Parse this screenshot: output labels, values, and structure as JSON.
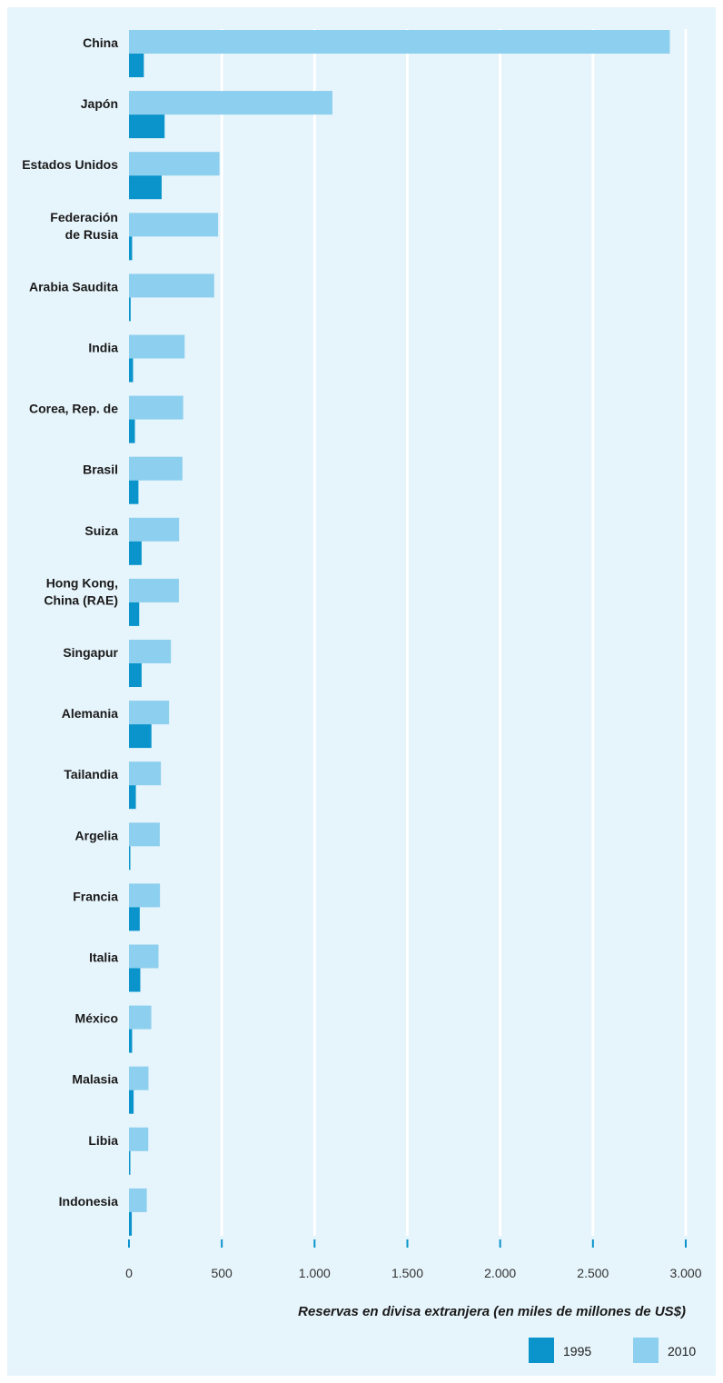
{
  "chart_data": {
    "type": "bar",
    "orientation": "horizontal",
    "categories": [
      "China",
      "Japón",
      "Estados Unidos",
      "Federación\nde Rusia",
      "Arabia Saudita",
      "India",
      "Corea, Rep. de",
      "Brasil",
      "Suiza",
      "Hong Kong,\nChina (RAE)",
      "Singapur",
      "Alemania",
      "Tailandia",
      "Argelia",
      "Francia",
      "Italia",
      "México",
      "Malasia",
      "Libia",
      "Indonesia"
    ],
    "series": [
      {
        "name": "2010",
        "color": "#8dcfee",
        "values": [
          2914,
          1096,
          488,
          480,
          459,
          300,
          292,
          288,
          270,
          269,
          226,
          216,
          172,
          166,
          167,
          159,
          120,
          105,
          104,
          96
        ]
      },
      {
        "name": "1995",
        "color": "#0a94cb",
        "values": [
          80,
          192,
          176,
          17,
          9,
          22,
          32,
          51,
          68,
          55,
          68,
          121,
          37,
          3,
          58,
          61,
          17,
          25,
          6,
          15
        ]
      }
    ],
    "xlabel": "Reservas en divisa extranjera (en miles de millones de US$)",
    "xticks": [
      "0",
      "500",
      "1.000",
      "1.500",
      "2.000",
      "2.500",
      "3.000"
    ],
    "xtick_values": [
      0,
      500,
      1000,
      1500,
      2000,
      2500,
      3000
    ],
    "xlim": [
      0,
      3000
    ],
    "grid": true,
    "legend": {
      "position": "bottom-right",
      "order": [
        "1995",
        "2010"
      ]
    }
  }
}
